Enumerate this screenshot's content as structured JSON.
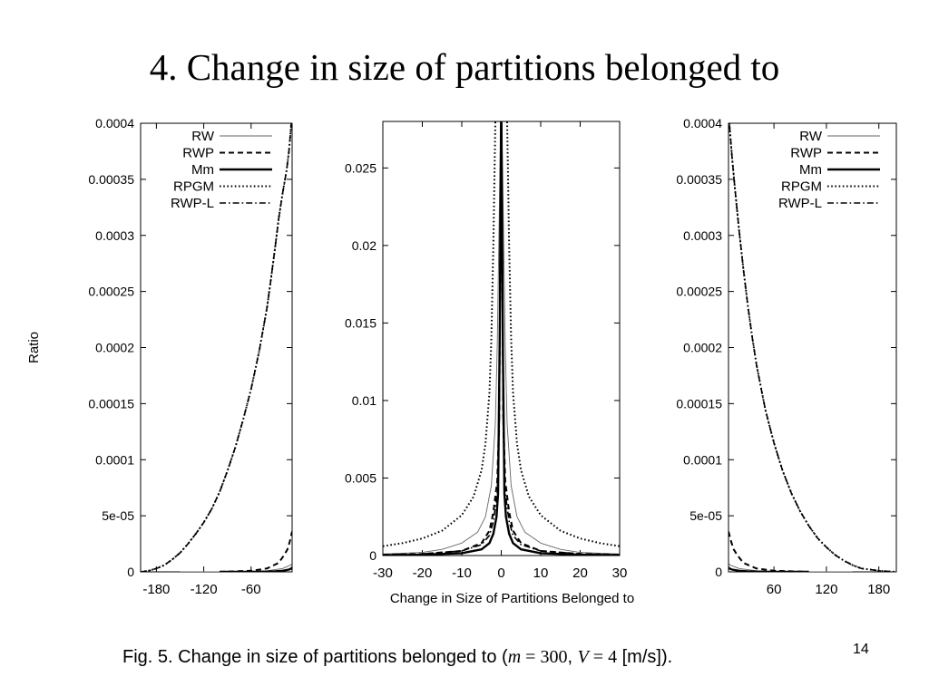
{
  "slide": {
    "title": "4. Change in size of partitions belonged to",
    "page_number": "14"
  },
  "caption": {
    "prefix": "Fig. 5. Change in size of partitions belonged to (",
    "m_var": "m",
    "m_eq": " = ",
    "m_val": "300",
    "sep": ", ",
    "v_var": "V",
    "v_eq": " = ",
    "v_val": "4",
    "suffix": " [m/s])."
  },
  "legend_entries": [
    {
      "label": "RW",
      "style": "thin-solid"
    },
    {
      "label": "RWP",
      "style": "dashed"
    },
    {
      "label": "Mm",
      "style": "thick-solid"
    },
    {
      "label": "RPGM",
      "style": "dotted"
    },
    {
      "label": "RWP-L",
      "style": "dash-dot"
    }
  ],
  "chart_data": [
    {
      "type": "line",
      "panel": "left",
      "ylabel": "Ratio",
      "xlim": [
        -200,
        -8
      ],
      "ylim": [
        0,
        0.0004
      ],
      "x_ticks": [
        -180,
        -120,
        -60
      ],
      "x_tick_labels": [
        "-180",
        "-120",
        "-60"
      ],
      "y_ticks": [
        0,
        5e-05,
        0.0001,
        0.00015,
        0.0002,
        0.00025,
        0.0003,
        0.00035,
        0.0004
      ],
      "y_tick_labels": [
        "0",
        "5e-05",
        "0.0001",
        "0.00015",
        "0.0002",
        "0.00025",
        "0.0003",
        "0.00035",
        "0.0004"
      ],
      "legend_position": "top-left",
      "series": [
        {
          "name": "RW",
          "style": "thin-solid",
          "x": [
            -150,
            -80,
            -40,
            -20,
            -10,
            -8
          ],
          "y": [
            0,
            0,
            1e-06,
            3e-06,
            6e-06,
            8e-06
          ]
        },
        {
          "name": "RWP",
          "style": "dashed",
          "x": [
            -100,
            -60,
            -40,
            -25,
            -18,
            -14,
            -11,
            -9,
            -8
          ],
          "y": [
            0,
            1e-06,
            3e-06,
            8e-06,
            1.5e-05,
            2e-05,
            2.7e-05,
            3.3e-05,
            3.6e-05
          ]
        },
        {
          "name": "Mm",
          "style": "thick-solid",
          "x": [
            -100,
            -50,
            -30,
            -20,
            -12,
            -9,
            -8
          ],
          "y": [
            0,
            0,
            5e-07,
            1e-06,
            2e-06,
            3e-06,
            4e-06
          ]
        },
        {
          "name": "RPGM",
          "style": "dotted",
          "x": [
            -200,
            -190,
            -180,
            -170,
            -160,
            -150,
            -140,
            -130,
            -120,
            -110,
            -100,
            -90,
            -80,
            -70,
            -60,
            -50,
            -40,
            -35,
            -30,
            -25,
            -20,
            -15,
            -12,
            -10,
            -8
          ],
          "y": [
            0,
            1e-06,
            3e-06,
            6e-06,
            1.1e-05,
            1.7e-05,
            2.5e-05,
            3.4e-05,
            4.4e-05,
            5.6e-05,
            7.1e-05,
            9e-05,
            0.000111,
            0.000136,
            0.000163,
            0.000196,
            0.000235,
            0.00026,
            0.000287,
            0.000315,
            0.000338,
            0.000358,
            0.000375,
            0.000392,
            0.00041
          ]
        },
        {
          "name": "RWP-L",
          "style": "dash-dot",
          "x": [
            -200,
            -190,
            -180,
            -170,
            -160,
            -150,
            -140,
            -130,
            -120,
            -110,
            -100,
            -90,
            -80,
            -70,
            -60,
            -50,
            -40,
            -35,
            -30,
            -25,
            -20,
            -15,
            -12,
            -10,
            -8
          ],
          "y": [
            0,
            1e-06,
            3e-06,
            6e-06,
            1.1e-05,
            1.7e-05,
            2.5e-05,
            3.4e-05,
            4.4e-05,
            5.6e-05,
            7.1e-05,
            9e-05,
            0.000111,
            0.000136,
            0.000163,
            0.000196,
            0.000235,
            0.00026,
            0.000287,
            0.000315,
            0.000338,
            0.000358,
            0.000375,
            0.000392,
            0.00041
          ]
        }
      ]
    },
    {
      "type": "line",
      "panel": "center",
      "xlabel": "Change in Size of Partitions Belonged to",
      "xlim": [
        -30,
        30
      ],
      "ylim": [
        0,
        0.028
      ],
      "x_ticks": [
        -30,
        -20,
        -10,
        0,
        10,
        20,
        30
      ],
      "x_tick_labels": [
        "-30",
        "-20",
        "-10",
        "0",
        "10",
        "20",
        "30"
      ],
      "y_ticks": [
        0,
        0.005,
        0.01,
        0.015,
        0.02,
        0.025
      ],
      "y_tick_labels": [
        "0",
        "0.005",
        "0.01",
        "0.015",
        "0.02",
        "0.025"
      ],
      "series": [
        {
          "name": "RW",
          "style": "thin-solid",
          "x": [
            -30,
            -20,
            -15,
            -10,
            -6,
            -4,
            -2.5,
            -1.5,
            -1,
            -0.5,
            0,
            0.5,
            1,
            1.5,
            2.5,
            4,
            6,
            10,
            15,
            20,
            30
          ],
          "y": [
            0.0001,
            0.0002,
            0.0004,
            0.0008,
            0.0015,
            0.0025,
            0.0045,
            0.0085,
            0.0135,
            0.022,
            0.03,
            0.022,
            0.0135,
            0.0085,
            0.0045,
            0.0025,
            0.0015,
            0.0008,
            0.0004,
            0.0002,
            0.0001
          ]
        },
        {
          "name": "RWP",
          "style": "dashed",
          "x": [
            -30,
            -20,
            -10,
            -5,
            -3,
            -2,
            -1,
            -0.5,
            0,
            0.5,
            1,
            2,
            3,
            5,
            10,
            20,
            30
          ],
          "y": [
            5e-05,
            0.0001,
            0.0003,
            0.0008,
            0.0016,
            0.0028,
            0.0048,
            0.009,
            0.03,
            0.009,
            0.0048,
            0.0028,
            0.0016,
            0.0008,
            0.0003,
            0.0001,
            5e-05
          ]
        },
        {
          "name": "Mm",
          "style": "thick-solid",
          "x": [
            -30,
            -20,
            -10,
            -5,
            -3,
            -2,
            -1.2,
            -0.8,
            -0.4,
            0,
            0.4,
            0.8,
            1.2,
            2,
            3,
            5,
            10,
            20,
            30
          ],
          "y": [
            2e-05,
            5e-05,
            0.00015,
            0.0004,
            0.0008,
            0.0014,
            0.0025,
            0.004,
            0.014,
            0.03,
            0.014,
            0.004,
            0.0025,
            0.0014,
            0.0008,
            0.0004,
            0.00015,
            5e-05,
            2e-05
          ]
        },
        {
          "name": "RPGM",
          "style": "dotted",
          "x": [
            -30,
            -25,
            -20,
            -15,
            -10,
            -7,
            -5,
            -4,
            -3,
            -2.5,
            -2,
            -1.5,
            -1,
            0,
            1,
            1.5,
            2,
            2.5,
            3,
            4,
            5,
            7,
            10,
            15,
            20,
            25,
            30
          ],
          "y": [
            0.0006,
            0.0008,
            0.0011,
            0.0016,
            0.0026,
            0.0038,
            0.0055,
            0.0072,
            0.0105,
            0.014,
            0.02,
            0.028,
            0.03,
            0.03,
            0.03,
            0.028,
            0.02,
            0.014,
            0.0105,
            0.0072,
            0.0055,
            0.0038,
            0.0026,
            0.0016,
            0.0011,
            0.0008,
            0.0006
          ]
        },
        {
          "name": "RWP-L",
          "style": "dash-dot",
          "x": [
            -30,
            -20,
            -10,
            -5,
            -3,
            -2,
            -1,
            -0.5,
            0,
            0.5,
            1,
            2,
            3,
            5,
            10,
            20,
            30
          ],
          "y": [
            5e-05,
            0.0001,
            0.0003,
            0.0007,
            0.0013,
            0.0022,
            0.004,
            0.008,
            0.03,
            0.008,
            0.004,
            0.0022,
            0.0013,
            0.0007,
            0.0003,
            0.0001,
            5e-05
          ]
        }
      ]
    },
    {
      "type": "line",
      "panel": "right",
      "xlim": [
        8,
        200
      ],
      "ylim": [
        0,
        0.0004
      ],
      "x_ticks": [
        60,
        120,
        180
      ],
      "x_tick_labels": [
        "60",
        "120",
        "180"
      ],
      "y_ticks": [
        0,
        5e-05,
        0.0001,
        0.00015,
        0.0002,
        0.00025,
        0.0003,
        0.00035,
        0.0004
      ],
      "y_tick_labels": [
        "0",
        "5e-05",
        "0.0001",
        "0.00015",
        "0.0002",
        "0.00025",
        "0.0003",
        "0.00035",
        "0.0004"
      ],
      "legend_position": "top-right",
      "series": [
        {
          "name": "RW",
          "style": "thin-solid",
          "x": [
            8,
            10,
            20,
            40,
            80,
            150
          ],
          "y": [
            8e-06,
            6e-06,
            3e-06,
            1e-06,
            0,
            0
          ]
        },
        {
          "name": "RWP",
          "style": "dashed",
          "x": [
            8,
            9,
            11,
            14,
            18,
            25,
            40,
            60,
            100
          ],
          "y": [
            3.6e-05,
            3.3e-05,
            2.7e-05,
            2e-05,
            1.5e-05,
            8e-06,
            3e-06,
            1e-06,
            0
          ]
        },
        {
          "name": "Mm",
          "style": "thick-solid",
          "x": [
            8,
            9,
            12,
            20,
            30,
            50,
            100
          ],
          "y": [
            4e-06,
            3e-06,
            2e-06,
            1e-06,
            5e-07,
            0,
            0
          ]
        },
        {
          "name": "RPGM",
          "style": "dotted",
          "x": [
            8,
            10,
            12,
            15,
            20,
            25,
            30,
            35,
            40,
            50,
            60,
            70,
            80,
            90,
            100,
            110,
            120,
            130,
            140,
            150,
            160,
            170,
            180,
            190,
            200
          ],
          "y": [
            0.00041,
            0.00039,
            0.00037,
            0.000345,
            0.000305,
            0.00027,
            0.000238,
            0.00021,
            0.000185,
            0.000145,
            0.000115,
            9e-05,
            7e-05,
            5.4e-05,
            4.1e-05,
            3e-05,
            2.2e-05,
            1.5e-05,
            1e-05,
            6e-06,
            3e-06,
            2e-06,
            1e-06,
            5e-07,
            0
          ]
        },
        {
          "name": "RWP-L",
          "style": "dash-dot",
          "x": [
            8,
            10,
            12,
            15,
            20,
            25,
            30,
            35,
            40,
            50,
            60,
            70,
            80,
            90,
            100,
            110,
            120,
            130,
            140,
            150,
            160,
            170,
            180,
            190,
            200
          ],
          "y": [
            0.00041,
            0.00039,
            0.00037,
            0.000345,
            0.000305,
            0.00027,
            0.000238,
            0.00021,
            0.000185,
            0.000145,
            0.000115,
            9e-05,
            7e-05,
            5.4e-05,
            4.1e-05,
            3e-05,
            2.2e-05,
            1.5e-05,
            1e-05,
            6e-06,
            3e-06,
            2e-06,
            1e-06,
            5e-07,
            0
          ]
        }
      ]
    }
  ]
}
